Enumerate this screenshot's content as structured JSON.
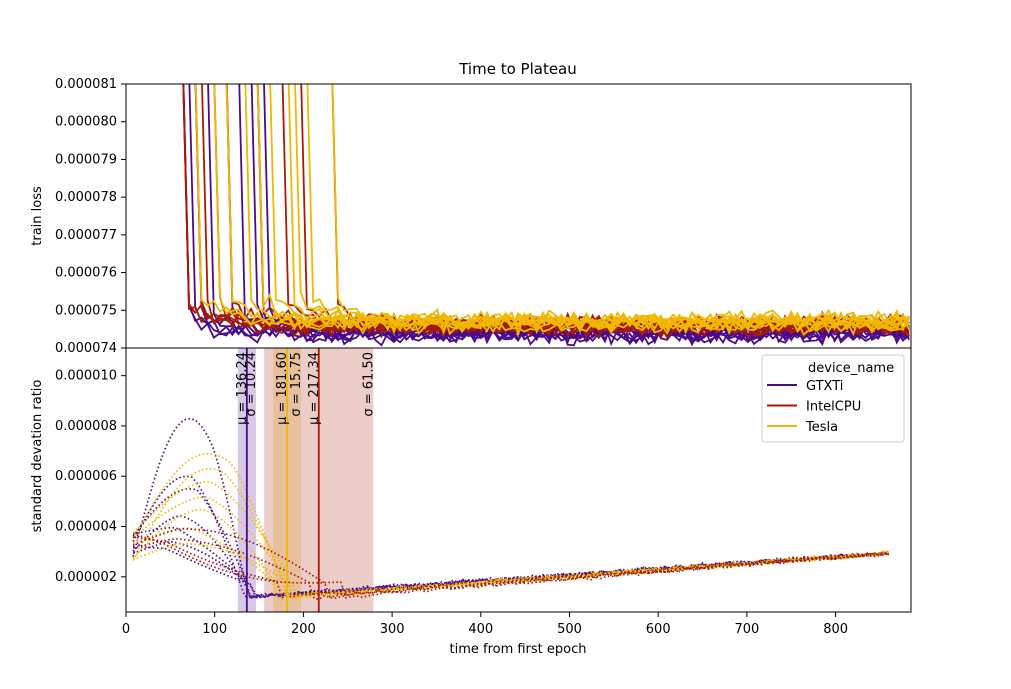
{
  "chart_data": [
    {
      "type": "line",
      "title": "Time to Plateau",
      "ylabel": "train loss",
      "xlim": [
        0,
        885
      ],
      "ylim": [
        7.4e-05,
        8.1e-05
      ],
      "yticks": [
        "0.000074",
        "0.000075",
        "0.000076",
        "0.000077",
        "0.000078",
        "0.000079",
        "0.000080",
        "0.000081"
      ],
      "yticks_values": [
        7.4e-05,
        7.5e-05,
        7.6e-05,
        7.7e-05,
        7.8e-05,
        7.9e-05,
        8e-05,
        8.1e-05
      ],
      "series_summary": [
        {
          "name": "GTXTi",
          "color": "#4b0a8a",
          "n_runs": 10,
          "start": 8.15e-05,
          "pre_plateau": 0.000775,
          "drop_times": [
            65,
            70,
            75,
            85,
            95,
            120,
            130,
            145,
            150,
            160
          ],
          "plateau": 7.44e-05,
          "end": 885
        },
        {
          "name": "IntelCPU",
          "color": "#a81a06",
          "n_runs": 10,
          "start": 8.15e-05,
          "pre_plateau": 0.000775,
          "drop_times": [
            65,
            70,
            80,
            90,
            100,
            120,
            150,
            180,
            200,
            235
          ],
          "plateau": 7.46e-05,
          "end": 885
        },
        {
          "name": "Tesla",
          "color": "#f0b800",
          "n_runs": 10,
          "start": 8.15e-05,
          "pre_plateau": 0.000775,
          "drop_times": [
            85,
            100,
            120,
            135,
            150,
            165,
            185,
            195,
            210,
            235
          ],
          "plateau": 7.47e-05,
          "end": 885
        }
      ]
    },
    {
      "type": "line",
      "xlabel": "time from first epoch",
      "ylabel": "standard devation ratio",
      "xlim": [
        0,
        885
      ],
      "ylim": [
        6e-07,
        1.11e-05
      ],
      "xticks": [
        "0",
        "100",
        "200",
        "300",
        "400",
        "500",
        "600",
        "700",
        "800"
      ],
      "xticks_values": [
        0,
        100,
        200,
        300,
        400,
        500,
        600,
        700,
        800
      ],
      "yticks": [
        "0.000002",
        "0.000004",
        "0.000006",
        "0.000008",
        "0.000010"
      ],
      "yticks_values": [
        2e-06,
        4e-06,
        6e-06,
        8e-06,
        1e-05
      ],
      "legend": {
        "title": "device_name",
        "placement": "top-right",
        "entries": [
          "GTXTi",
          "IntelCPU",
          "Tesla"
        ]
      },
      "series": [
        {
          "name": "GTXTi",
          "color": "#4b0a8a",
          "mean": 136.24,
          "sd": 10.24,
          "label_mu": "μ = 136.24",
          "label_sigma": "σ = 10.24",
          "peak_heights": [
            8.3e-06,
            6e-06,
            5.5e-06,
            4.5e-06,
            4e-06,
            3.5e-06,
            3.1e-06
          ],
          "peak_x": [
            100,
            75,
            80,
            60,
            55,
            50,
            45
          ]
        },
        {
          "name": "Tesla",
          "color": "#f0b800",
          "mean": 181.6,
          "sd": 15.75,
          "label_mu": "μ = 181.60",
          "label_sigma": "σ = 15.75",
          "peak_heights": [
            6.9e-06,
            6.3e-06,
            5.8e-06,
            5.2e-06,
            4.7e-06,
            4e-06,
            3.5e-06
          ],
          "peak_x": [
            120,
            110,
            95,
            90,
            85,
            70,
            60
          ]
        },
        {
          "name": "IntelCPU",
          "color": "#a81a06",
          "mean": 217.34,
          "sd": 61.5,
          "label_mu": "μ = 217.34",
          "label_sigma": "σ = 61.50",
          "peak_heights": [
            4.2e-06,
            3.7e-06,
            3.3e-06,
            2.9e-06
          ],
          "peak_x": [
            60,
            55,
            45,
            40
          ]
        }
      ],
      "tail": {
        "start_x": 120,
        "start_y": 1.2e-06,
        "end_x": 885,
        "end_y": 3e-06
      }
    }
  ]
}
